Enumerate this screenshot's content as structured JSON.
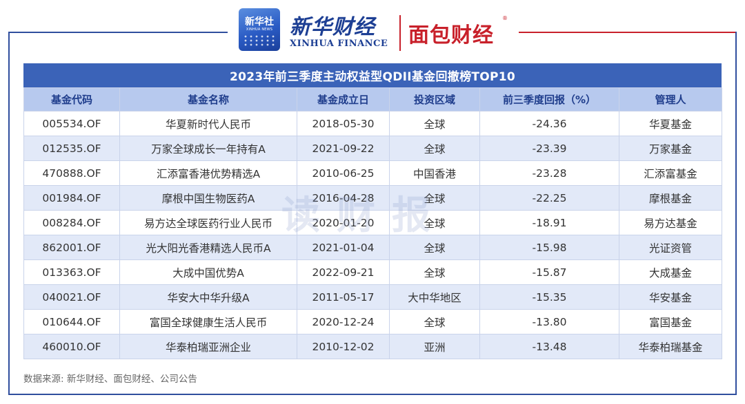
{
  "header": {
    "xinhua_badge_name": "新华社",
    "xinhua_badge_sub": "XINHUA NEWS",
    "xinhua_finance_title": "新华财经",
    "xinhua_finance_en": "XINHUA FINANCE",
    "mianbao_title": "面包财经",
    "mianbao_reg": "®"
  },
  "table": {
    "title": "2023年前三季度主动权益型QDII基金回撤榜TOP10",
    "columns": [
      "基金代码",
      "基金名称",
      "基金成立日",
      "投资区域",
      "前三季度回报（%）",
      "管理人"
    ],
    "rows": [
      [
        "005534.OF",
        "华夏新时代人民币",
        "2018-05-30",
        "全球",
        "-24.36",
        "华夏基金"
      ],
      [
        "012535.OF",
        "万家全球成长一年持有A",
        "2021-09-22",
        "全球",
        "-23.39",
        "万家基金"
      ],
      [
        "470888.OF",
        "汇添富香港优势精选A",
        "2010-06-25",
        "中国香港",
        "-23.28",
        "汇添富基金"
      ],
      [
        "001984.OF",
        "摩根中国生物医药A",
        "2016-04-28",
        "全球",
        "-22.25",
        "摩根基金"
      ],
      [
        "008284.OF",
        "易方达全球医药行业人民币",
        "2020-01-20",
        "全球",
        "-18.91",
        "易方达基金"
      ],
      [
        "862001.OF",
        "光大阳光香港精选人民币A",
        "2021-01-04",
        "全球",
        "-15.98",
        "光证资管"
      ],
      [
        "013363.OF",
        "大成中国优势A",
        "2022-09-21",
        "全球",
        "-15.87",
        "大成基金"
      ],
      [
        "040021.OF",
        "华安大中华升级A",
        "2011-05-17",
        "大中华地区",
        "-15.35",
        "华安基金"
      ],
      [
        "010644.OF",
        "富国全球健康生活人民币",
        "2020-12-24",
        "全球",
        "-13.80",
        "富国基金"
      ],
      [
        "460010.OF",
        "华泰柏瑞亚洲企业",
        "2010-12-02",
        "亚洲",
        "-13.48",
        "华泰柏瑞基金"
      ]
    ]
  },
  "watermark": "读财报",
  "source": "数据来源: 新华财经、面包财经、公司公告",
  "colors": {
    "brand_blue": "#2f4e9d",
    "brand_red": "#c8202a",
    "caption_bg": "#3b63b8",
    "header_bg": "#b7c9ee",
    "stripe_bg": "#e2e9f8"
  }
}
